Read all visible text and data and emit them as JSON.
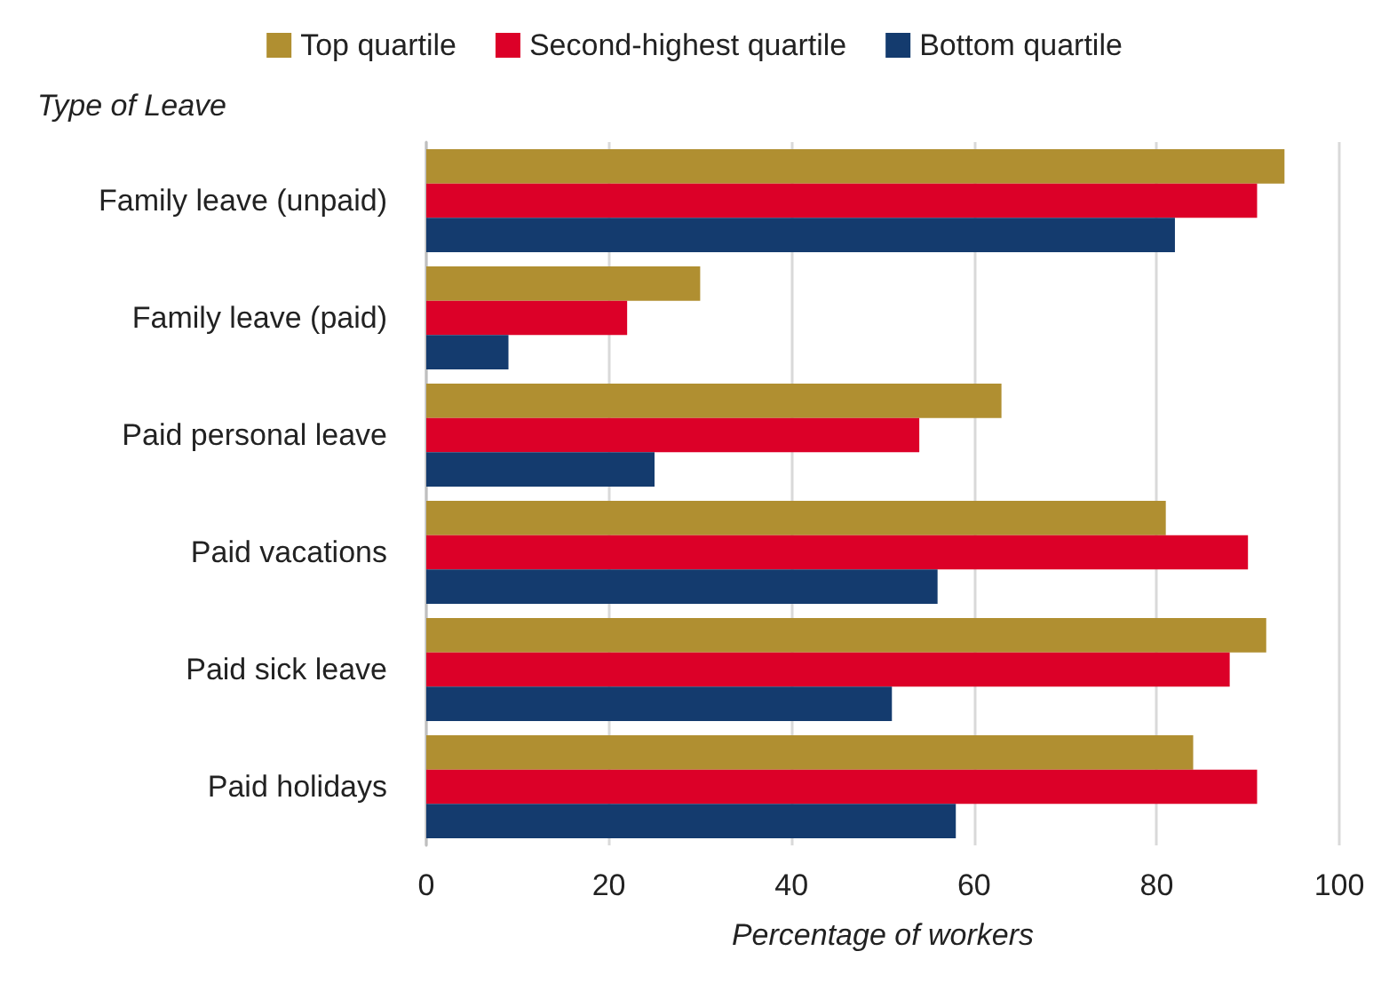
{
  "chart_data": {
    "type": "bar",
    "orientation": "horizontal",
    "ylabel": "Type of Leave",
    "xlabel": "Percentage of workers",
    "categories": [
      "Family leave (unpaid)",
      "Family leave (paid)",
      "Paid personal leave",
      "Paid vacations",
      "Paid sick leave",
      "Paid holidays"
    ],
    "series": [
      {
        "name": "Top quartile",
        "color": "#b08f31",
        "values": [
          94,
          30,
          63,
          81,
          92,
          84
        ]
      },
      {
        "name": "Second-highest quartile",
        "color": "#dc0028",
        "values": [
          91,
          22,
          54,
          90,
          88,
          91
        ]
      },
      {
        "name": "Bottom quartile",
        "color": "#143b6e",
        "values": [
          82,
          9,
          25,
          56,
          51,
          58
        ]
      }
    ],
    "xlim": [
      0,
      100
    ],
    "xticks": [
      0,
      20,
      40,
      60,
      80,
      100
    ],
    "grid": "x",
    "legend": "top"
  }
}
